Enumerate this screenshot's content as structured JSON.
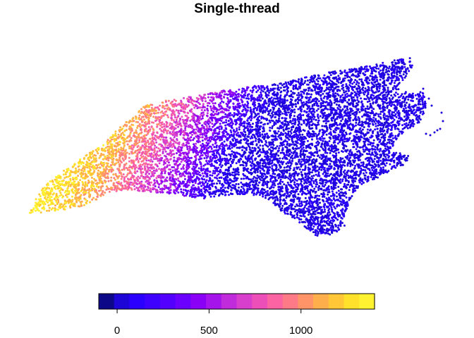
{
  "title": "Single-thread",
  "map": {
    "type": "point-map",
    "region": "North Carolina",
    "point_color_scale": "plasma"
  },
  "legend": {
    "orientation": "horizontal",
    "placement": "bottom",
    "range": [
      -100,
      1400
    ],
    "colors": [
      "#0d0887",
      "#1d05d8",
      "#2b00ff",
      "#3e00ff",
      "#5300ff",
      "#6b00ff",
      "#8a00f7",
      "#a514ea",
      "#c02bdb",
      "#d83fcc",
      "#ec4fb8",
      "#fb63a2",
      "#ff7a87",
      "#ff9468",
      "#ffae4c",
      "#ffc737",
      "#ffe12b",
      "#fff231"
    ],
    "ticks": [
      {
        "value": 0,
        "label": "0"
      },
      {
        "value": 500,
        "label": "500"
      },
      {
        "value": 1000,
        "label": "1000"
      }
    ]
  }
}
